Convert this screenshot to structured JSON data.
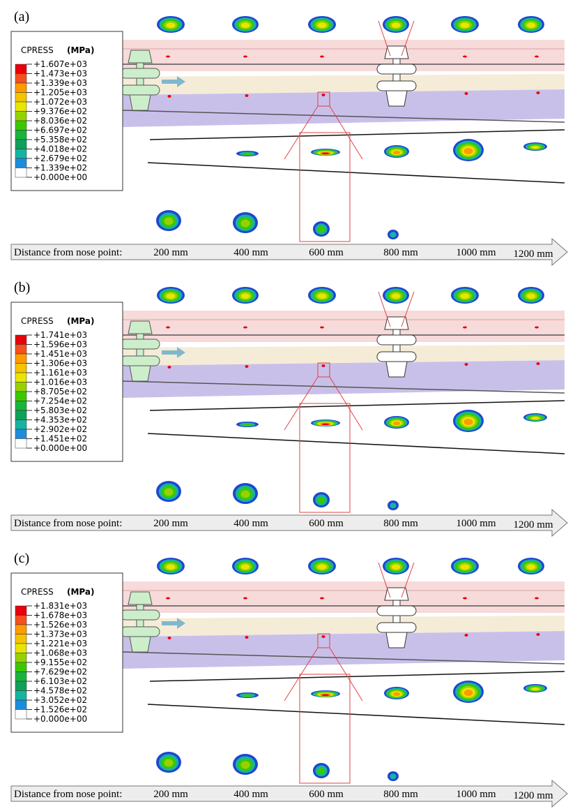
{
  "panels": [
    {
      "label": "(a)",
      "legend": {
        "title": "CPRESS",
        "unit": "(MPa)",
        "levels": [
          "+1.607e+03",
          "+1.473e+03",
          "+1.339e+03",
          "+1.205e+03",
          "+1.072e+03",
          "+9.376e+02",
          "+8.036e+02",
          "+6.697e+02",
          "+5.358e+02",
          "+4.018e+02",
          "+2.679e+02",
          "+1.339e+02",
          "+0.000e+00"
        ]
      },
      "axis": {
        "title": "Distance  from nose point:",
        "ticks": [
          "200 mm",
          "400 mm",
          "600 mm",
          "800 mm",
          "1000 mm",
          "1200 mm"
        ]
      }
    },
    {
      "label": "(b)",
      "legend": {
        "title": "CPRESS",
        "unit": "(MPa)",
        "levels": [
          "+1.741e+03",
          "+1.596e+03",
          "+1.451e+03",
          "+1.306e+03",
          "+1.161e+03",
          "+1.016e+03",
          "+8.705e+02",
          "+7.254e+02",
          "+5.803e+02",
          "+4.353e+02",
          "+2.902e+02",
          "+1.451e+02",
          "+0.000e+00"
        ]
      },
      "axis": {
        "title": "Distance  from nose point:",
        "ticks": [
          "200 mm",
          "400 mm",
          "600 mm",
          "800 mm",
          "1000 mm",
          "1200 mm"
        ]
      }
    },
    {
      "label": "(c)",
      "legend": {
        "title": "CPRESS",
        "unit": "(MPa)",
        "levels": [
          "+1.831e+03",
          "+1.678e+03",
          "+1.526e+03",
          "+1.373e+03",
          "+1.221e+03",
          "+1.068e+03",
          "+9.155e+02",
          "+7.629e+02",
          "+6.103e+02",
          "+4.578e+02",
          "+3.052e+02",
          "+1.526e+02",
          "+0.000e+00"
        ]
      },
      "axis": {
        "title": "Distance  from nose point:",
        "ticks": [
          "200 mm",
          "400 mm",
          "600 mm",
          "800 mm",
          "1000 mm",
          "1200 mm"
        ]
      }
    }
  ]
}
